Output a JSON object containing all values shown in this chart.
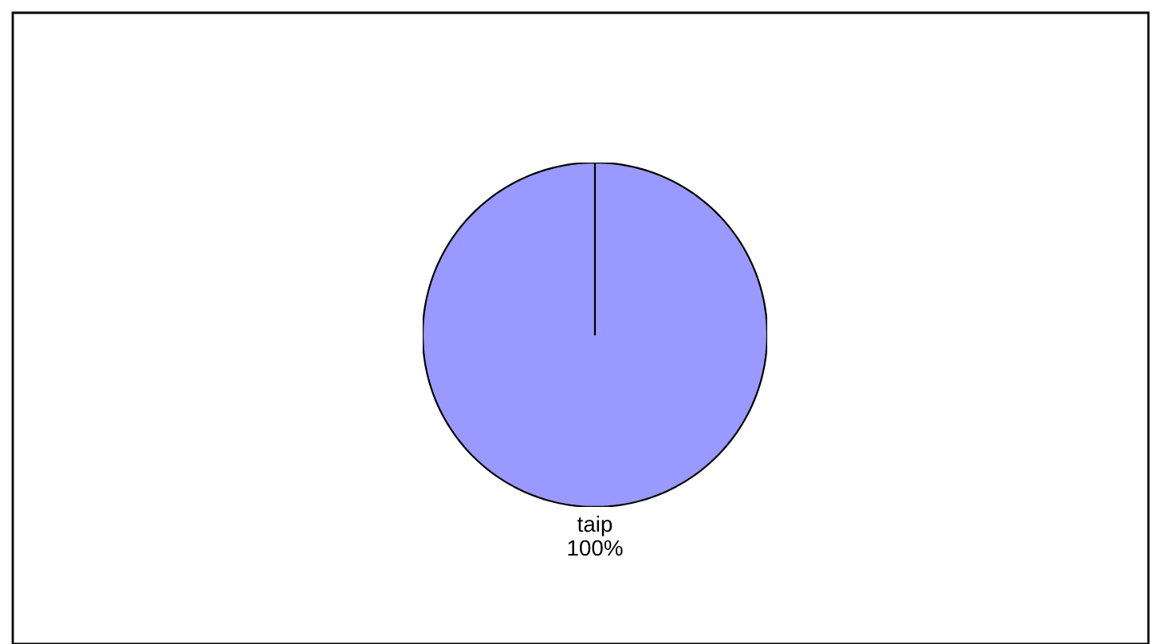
{
  "chart_data": {
    "type": "pie",
    "categories": [
      "taip"
    ],
    "values": [
      100
    ],
    "colors": [
      "#9999ff"
    ],
    "value_labels": [
      "100%"
    ]
  }
}
